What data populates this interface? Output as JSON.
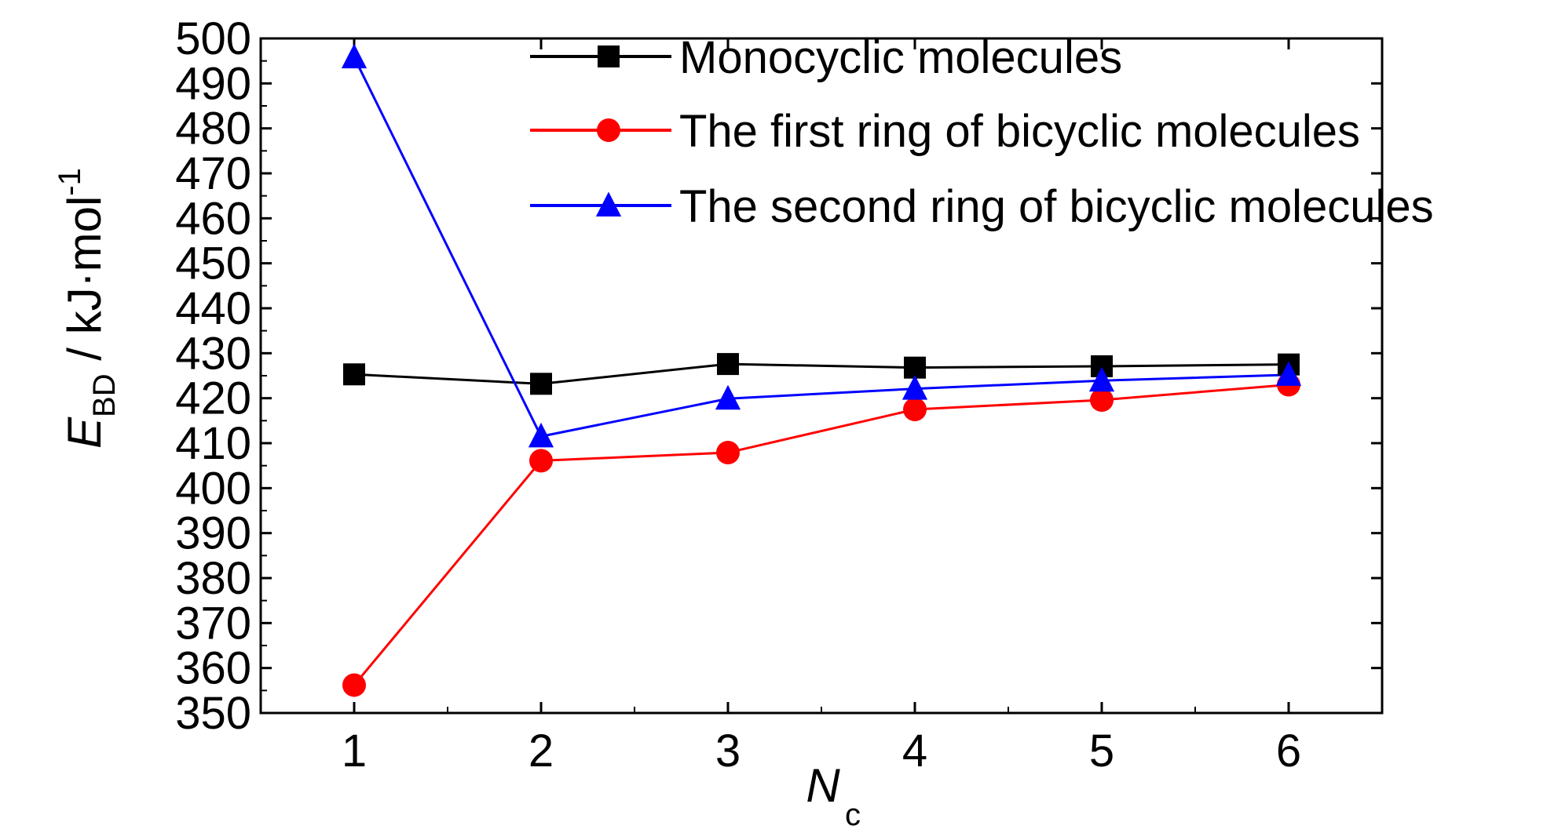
{
  "chart_data": {
    "type": "line",
    "xlabel": "N",
    "xlabel_sub": "c",
    "ylabel": "E",
    "ylabel_sub": "BD",
    "ylabel_unit": " / kJ·mol",
    "ylabel_sup": "-1",
    "x": [
      1,
      2,
      3,
      4,
      5,
      6
    ],
    "xticks": [
      1,
      2,
      3,
      4,
      5,
      6
    ],
    "xlim": [
      0.5,
      6.5
    ],
    "ylim": [
      350,
      500
    ],
    "yticks": [
      350,
      360,
      370,
      380,
      390,
      400,
      410,
      420,
      430,
      440,
      450,
      460,
      470,
      480,
      490,
      500
    ],
    "grid": false,
    "legend_position": "top-right",
    "series": [
      {
        "name": "Monocyclic molecules",
        "color": "#000000",
        "marker": "square",
        "values": [
          425.3,
          423.2,
          427.6,
          426.8,
          427.1,
          427.5
        ]
      },
      {
        "name": "The first ring of bicyclic molecules",
        "color": "#ff0000",
        "marker": "circle",
        "values": [
          356.2,
          406.1,
          407.9,
          417.5,
          419.6,
          423.0
        ]
      },
      {
        "name": "The second ring of  bicyclic molecules",
        "color": "#0000ff",
        "marker": "triangle",
        "values": [
          495.8,
          411.5,
          419.9,
          422.1,
          423.9,
          425.2
        ]
      }
    ]
  }
}
